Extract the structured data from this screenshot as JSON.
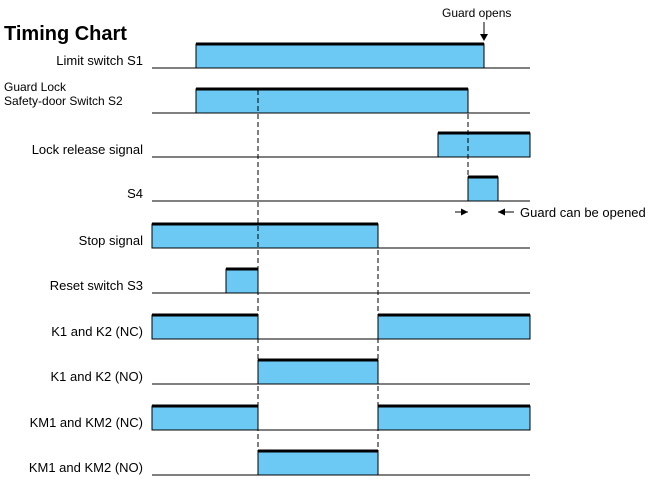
{
  "title": "Timing Chart",
  "annotations": {
    "guard_opens": "Guard opens",
    "guard_can_be_opened": "Guard can be opened"
  },
  "colors": {
    "fill": "#6cc9f4",
    "line": "#000000"
  },
  "time_markers": {
    "t1": 258,
    "t2": 378,
    "t3": 468
  },
  "signals": [
    {
      "label": "Limit switch   S1",
      "high": [
        [
          196,
          484
        ]
      ]
    },
    {
      "label": "Guard Lock",
      "label2": "Safety-door Switch S2",
      "high": [
        [
          196,
          468
        ]
      ]
    },
    {
      "label": "Lock release signal",
      "high": [
        [
          438,
          530
        ]
      ]
    },
    {
      "label": "S4",
      "high": [
        [
          468,
          498
        ]
      ]
    },
    {
      "label": "Stop signal",
      "high": [
        [
          152,
          378
        ]
      ]
    },
    {
      "label": "Reset switch S3",
      "high": [
        [
          226,
          258
        ]
      ]
    },
    {
      "label": "K1 and K2 (NC)",
      "high": [
        [
          152,
          258
        ],
        [
          378,
          530
        ]
      ]
    },
    {
      "label": "K1 and K2 (NO)",
      "high": [
        [
          258,
          378
        ]
      ]
    },
    {
      "label": "KM1 and KM2 (NC)",
      "high": [
        [
          152,
          258
        ],
        [
          378,
          530
        ]
      ]
    },
    {
      "label": "KM1 and KM2 (NO)",
      "high": [
        [
          258,
          378
        ]
      ]
    }
  ]
}
